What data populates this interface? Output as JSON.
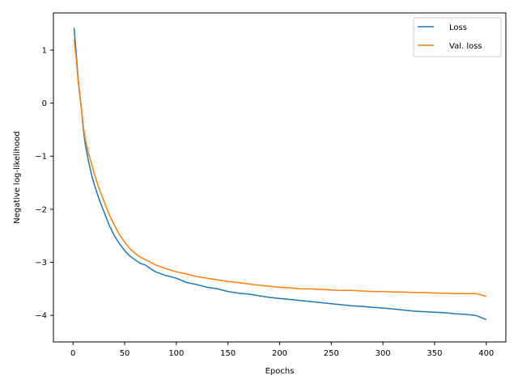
{
  "chart_data": {
    "type": "line",
    "title": "",
    "xlabel": "Epochs",
    "ylabel": "Negative log-likelihood",
    "xlim": [
      -19,
      419
    ],
    "ylim": [
      -4.5,
      1.7
    ],
    "xticks": [
      0,
      50,
      100,
      150,
      200,
      250,
      300,
      350,
      400
    ],
    "yticks": [
      -4,
      -3,
      -2,
      -1,
      0,
      1
    ],
    "ytick_labels": [
      "−4",
      "−3",
      "−2",
      "−1",
      "0",
      "1"
    ],
    "grid": false,
    "legend_position": "top-right",
    "colors": {
      "loss": "#1f77b4",
      "val_loss": "#ff7f0e"
    },
    "series": [
      {
        "name": "Loss",
        "x": [
          1,
          3,
          5,
          8,
          10,
          12,
          15,
          18,
          20,
          25,
          30,
          35,
          40,
          45,
          50,
          55,
          60,
          65,
          70,
          75,
          80,
          90,
          100,
          110,
          120,
          130,
          140,
          150,
          160,
          170,
          180,
          190,
          200,
          210,
          220,
          230,
          240,
          250,
          260,
          270,
          280,
          290,
          300,
          310,
          320,
          330,
          340,
          350,
          360,
          370,
          380,
          390,
          400
        ],
        "values": [
          1.42,
          0.95,
          0.45,
          -0.1,
          -0.5,
          -0.8,
          -1.1,
          -1.35,
          -1.5,
          -1.8,
          -2.05,
          -2.3,
          -2.5,
          -2.65,
          -2.78,
          -2.88,
          -2.95,
          -3.02,
          -3.05,
          -3.12,
          -3.18,
          -3.25,
          -3.3,
          -3.38,
          -3.42,
          -3.47,
          -3.5,
          -3.55,
          -3.58,
          -3.6,
          -3.63,
          -3.66,
          -3.68,
          -3.7,
          -3.72,
          -3.74,
          -3.76,
          -3.78,
          -3.8,
          -3.82,
          -3.83,
          -3.85,
          -3.86,
          -3.88,
          -3.9,
          -3.92,
          -3.93,
          -3.94,
          -3.95,
          -3.97,
          -3.98,
          -4.0,
          -4.08
        ]
      },
      {
        "name": "Val. loss",
        "x": [
          1,
          3,
          5,
          8,
          10,
          12,
          15,
          18,
          20,
          25,
          30,
          35,
          40,
          45,
          50,
          55,
          60,
          65,
          70,
          75,
          80,
          90,
          100,
          110,
          120,
          130,
          140,
          150,
          160,
          170,
          180,
          190,
          200,
          210,
          220,
          230,
          240,
          250,
          260,
          270,
          280,
          290,
          300,
          310,
          320,
          330,
          340,
          350,
          360,
          370,
          380,
          390,
          400
        ],
        "values": [
          1.2,
          0.85,
          0.4,
          -0.1,
          -0.45,
          -0.7,
          -0.95,
          -1.15,
          -1.3,
          -1.6,
          -1.85,
          -2.1,
          -2.3,
          -2.48,
          -2.62,
          -2.74,
          -2.83,
          -2.9,
          -2.95,
          -3.0,
          -3.05,
          -3.12,
          -3.18,
          -3.22,
          -3.27,
          -3.3,
          -3.33,
          -3.36,
          -3.38,
          -3.41,
          -3.43,
          -3.45,
          -3.47,
          -3.48,
          -3.5,
          -3.5,
          -3.51,
          -3.52,
          -3.53,
          -3.53,
          -3.54,
          -3.55,
          -3.55,
          -3.56,
          -3.56,
          -3.57,
          -3.57,
          -3.58,
          -3.58,
          -3.59,
          -3.59,
          -3.59,
          -3.64
        ]
      }
    ]
  }
}
